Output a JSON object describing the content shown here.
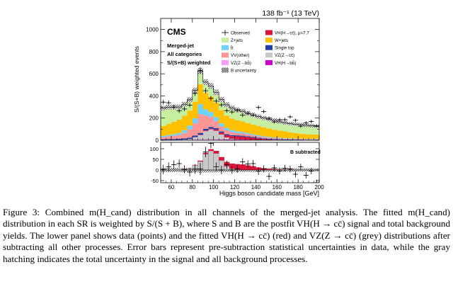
{
  "chart_data": {
    "type": "bar",
    "subtype": "stacked-histogram-with-ratio-panel",
    "header_right": "138 fb⁻¹ (13 TeV)",
    "experiment": "CMS",
    "info_lines": [
      "Merged-jet",
      "All categories",
      "S/(S+B) weighted"
    ],
    "ylabel": "S/(S+B) weighted events",
    "xlabel": "Higgs boson candidate mass [GeV]",
    "xlim": [
      50,
      200
    ],
    "ylim": [
      0,
      1100
    ],
    "yticks": [
      0,
      200,
      400,
      600,
      800,
      1000
    ],
    "xticks": [
      60,
      80,
      100,
      120,
      140,
      160,
      180,
      200
    ],
    "bin_edges": [
      50,
      55,
      60,
      65,
      70,
      75,
      80,
      85,
      90,
      95,
      100,
      105,
      110,
      115,
      120,
      125,
      130,
      135,
      140,
      145,
      150,
      155,
      160,
      165,
      170,
      175,
      180,
      185,
      190,
      195,
      200
    ],
    "legend_title_vh": "VH(H→cc̄), μ=7.7",
    "series": [
      {
        "name": "ZZ_bb",
        "label": "VZ(Z→bb̄)",
        "color": "#ff99ff",
        "values": [
          2,
          2,
          2,
          3,
          3,
          3,
          4,
          5,
          6,
          6,
          5,
          4,
          3,
          2,
          2,
          2,
          1,
          1,
          1,
          1,
          1,
          1,
          1,
          1,
          1,
          1,
          1,
          1,
          1,
          1
        ]
      },
      {
        "name": "VH_bb",
        "label": "VH(H→bb̄)",
        "color": "#cc00cc",
        "values": [
          1,
          1,
          1,
          1,
          1,
          1,
          1,
          1,
          1,
          2,
          2,
          3,
          4,
          5,
          5,
          5,
          4,
          3,
          2,
          2,
          1,
          1,
          1,
          1,
          1,
          1,
          1,
          1,
          1,
          1
        ]
      },
      {
        "name": "VZ_cc",
        "label": "VZ(Z→cc̄)",
        "color": "#c8c8c8",
        "values": [
          0,
          0,
          0,
          0,
          2,
          6,
          22,
          40,
          75,
          90,
          78,
          45,
          18,
          6,
          2,
          1,
          0,
          0,
          0,
          0,
          0,
          0,
          0,
          0,
          0,
          0,
          0,
          0,
          0,
          0
        ]
      },
      {
        "name": "VH_cc",
        "label": "VH(H→cc̄), μ=7.7",
        "color": "#dc143c",
        "values": [
          0,
          0,
          0,
          0,
          0,
          1,
          2,
          4,
          6,
          8,
          12,
          16,
          20,
          24,
          26,
          25,
          22,
          18,
          12,
          8,
          5,
          3,
          2,
          1,
          1,
          0,
          0,
          0,
          0,
          0
        ]
      },
      {
        "name": "single_top",
        "label": "Single top",
        "color": "#1e3fa8",
        "values": [
          6,
          7,
          8,
          9,
          10,
          12,
          14,
          16,
          15,
          14,
          12,
          11,
          10,
          9,
          9,
          8,
          8,
          7,
          7,
          6,
          6,
          5,
          5,
          5,
          4,
          4,
          4,
          3,
          3,
          3
        ]
      },
      {
        "name": "VV_other",
        "label": "VV(other)",
        "color": "#ff9696",
        "values": [
          20,
          25,
          30,
          35,
          50,
          75,
          110,
          170,
          120,
          90,
          65,
          45,
          35,
          28,
          22,
          20,
          18,
          15,
          14,
          12,
          10,
          9,
          8,
          7,
          6,
          6,
          5,
          5,
          4,
          4
        ]
      },
      {
        "name": "ttbar",
        "label": "t̄t",
        "color": "#70d2ff",
        "values": [
          10,
          12,
          15,
          18,
          25,
          35,
          45,
          90,
          55,
          45,
          35,
          28,
          22,
          18,
          15,
          13,
          12,
          10,
          9,
          8,
          7,
          6,
          5,
          5,
          4,
          4,
          3,
          3,
          3,
          3
        ]
      },
      {
        "name": "W_jets",
        "label": "W+jets",
        "color": "#ffc000",
        "values": [
          90,
          100,
          110,
          120,
          130,
          135,
          150,
          180,
          150,
          140,
          130,
          120,
          110,
          105,
          100,
          95,
          90,
          88,
          85,
          80,
          75,
          70,
          65,
          60,
          55,
          50,
          45,
          42,
          40,
          40
        ]
      },
      {
        "name": "Z_jets",
        "label": "Z+jets",
        "color": "#c6f0a0",
        "values": [
          161,
          151,
          134,
          114,
          104,
          97,
          102,
          119,
          97,
          95,
          94,
          96,
          98,
          95,
          94,
          93,
          89,
          86,
          84,
          83,
          84,
          85,
          80,
          79,
          77,
          79,
          82,
          80,
          80,
          74
        ]
      }
    ],
    "data_points": [
      344,
      338,
      299,
      265,
      282,
      317,
      423,
      629,
      447,
      378,
      353,
      319,
      267,
      255,
      270,
      227,
      242,
      228,
      296,
      259,
      199,
      165,
      186,
      186,
      211,
      180,
      127,
      158,
      169,
      130
    ],
    "data_errors": [
      22,
      21,
      20,
      19,
      19,
      20,
      23,
      28,
      24,
      22,
      21,
      20,
      19,
      18,
      18,
      17,
      17,
      17,
      18,
      17,
      16,
      15,
      16,
      16,
      16,
      15,
      14,
      15,
      15,
      14
    ],
    "legend": [
      "Observed",
      "VH(H→cc̄), μ=7.7",
      "Z+jets",
      "W+jets",
      "t̄t",
      "Single top",
      "VV(other)",
      "VZ(Z→cc̄)",
      "VZ(Z→bb̄)",
      "VH(H→bb̄)",
      "B uncertainty"
    ],
    "lower_panel": {
      "label": "B subtracted",
      "ylim": [
        -60,
        130
      ],
      "yticks": [
        -50,
        0,
        50,
        100
      ],
      "data_points": [
        3,
        15,
        25,
        30,
        3,
        -10,
        5,
        5,
        85,
        125,
        15,
        0,
        25,
        0,
        5,
        38,
        28,
        30,
        -5,
        5,
        -30,
        10,
        -5,
        8,
        5,
        -20,
        15,
        -25,
        -5,
        -60
      ],
      "data_errors": [
        22,
        21,
        20,
        19,
        19,
        20,
        23,
        28,
        24,
        22,
        21,
        20,
        19,
        18,
        18,
        17,
        17,
        17,
        18,
        17,
        16,
        15,
        16,
        16,
        16,
        15,
        14,
        15,
        15,
        14
      ]
    }
  },
  "caption": {
    "text": "Figure 3: Combined m(H_cand) distribution in all channels of the merged-jet analysis. The fitted m(H_cand) distribution in each SR is weighted by S/(S + B), where S and B are the postfit VH(H → cc̄) signal and total background yields. The lower panel shows data (points) and the fitted VH(H → cc̄) (red) and VZ(Z → cc̄) (grey) distributions after subtracting all other processes. Error bars represent pre-subtraction statistical uncertainties in data, while the gray hatching indicates the total uncertainty in the signal and all background processes."
  }
}
